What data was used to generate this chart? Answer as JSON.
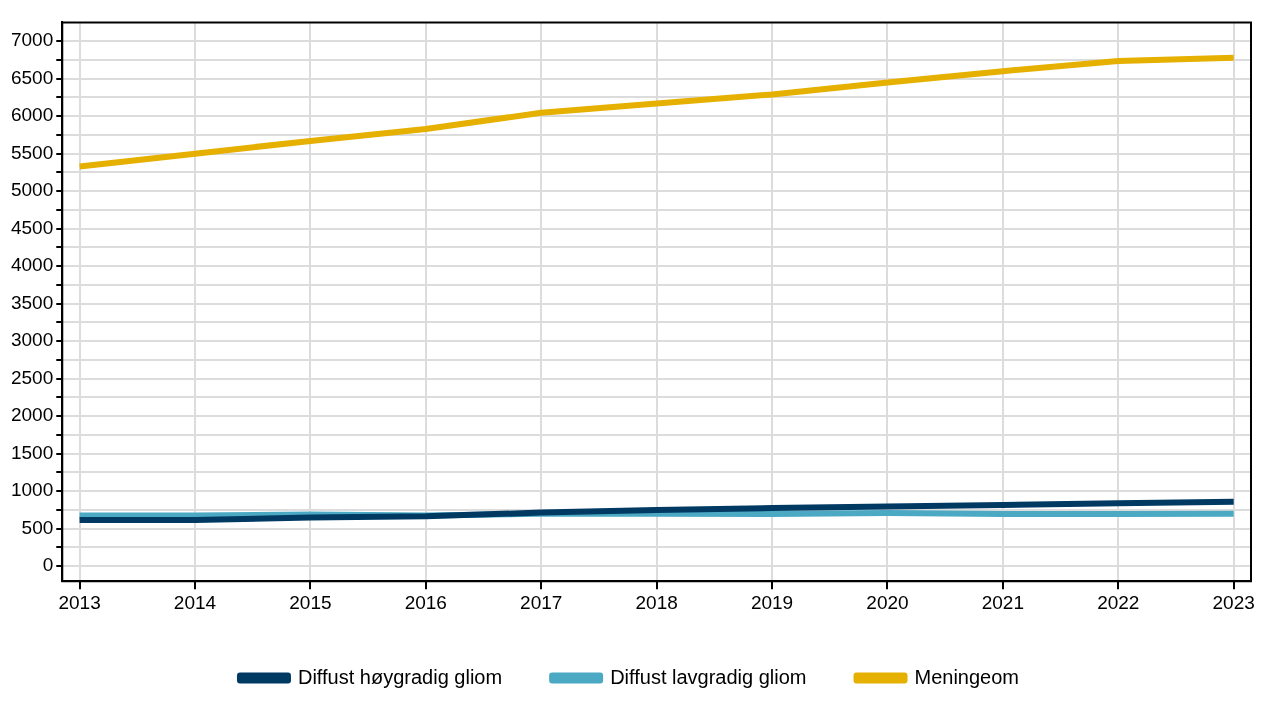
{
  "chart_data": {
    "type": "line",
    "x": [
      2013,
      2014,
      2015,
      2016,
      2017,
      2018,
      2019,
      2020,
      2021,
      2022,
      2023
    ],
    "series": [
      {
        "name": "Diffust høygradig gliom",
        "color": "#003a63",
        "values": [
          615,
          615,
          650,
          665,
          715,
          750,
          775,
          795,
          815,
          840,
          860
        ]
      },
      {
        "name": "Diffust lavgradig gliom",
        "color": "#4ba9c4",
        "values": [
          675,
          675,
          690,
          675,
          700,
          700,
          695,
          710,
          695,
          695,
          700
        ]
      },
      {
        "name": "Meningeom",
        "color": "#e6b000",
        "values": [
          5330,
          5500,
          5670,
          5830,
          6045,
          6170,
          6290,
          6450,
          6600,
          6735,
          6780
        ]
      }
    ],
    "xlim": [
      2012.85,
      2023.15
    ],
    "xticks": [
      2013,
      2014,
      2015,
      2016,
      2017,
      2018,
      2019,
      2020,
      2021,
      2022,
      2023
    ],
    "ylim": [
      -200,
      7250
    ],
    "yticks": [
      0,
      {
        "value": 250,
        "label": null
      },
      500,
      {
        "value": 750,
        "label": null
      },
      1000,
      {
        "value": 1250,
        "label": null
      },
      1500,
      {
        "value": 1750,
        "label": null
      },
      2000,
      {
        "value": 2250,
        "label": null
      },
      2500,
      {
        "value": 2750,
        "label": null
      },
      3000,
      {
        "value": 3250,
        "label": null
      },
      3500,
      {
        "value": 3750,
        "label": null
      },
      4000,
      {
        "value": 4250,
        "label": null
      },
      4500,
      {
        "value": 4750,
        "label": null
      },
      5000,
      {
        "value": 5250,
        "label": null
      },
      5500,
      {
        "value": 5750,
        "label": null
      },
      6000,
      {
        "value": 6250,
        "label": null
      },
      6500,
      {
        "value": 6750,
        "label": null
      },
      7000
    ],
    "grid": true,
    "legend": "bottom",
    "marker": "none",
    "line_style": "solid"
  }
}
